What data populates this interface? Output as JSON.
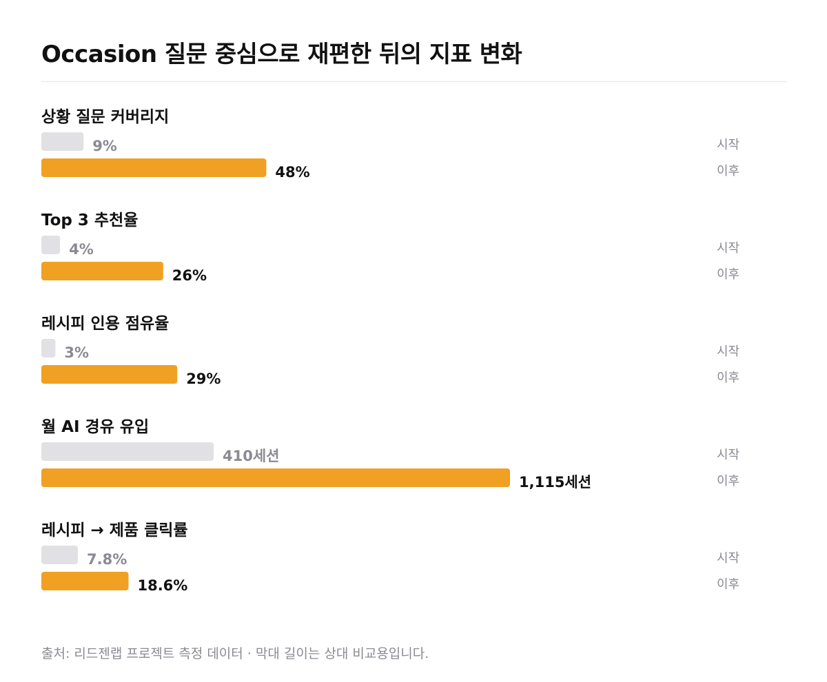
{
  "chart_data": {
    "type": "bar",
    "title": "Occasion 질문 중심으로 재편한 뒤의 지표 변화",
    "series": [
      {
        "name": "시작",
        "color": "#e1e1e5"
      },
      {
        "name": "이후",
        "color": "#f0a023"
      }
    ],
    "metrics": [
      {
        "label": "상황 질문 커버리지",
        "before": 9,
        "after": 48,
        "before_label": "9%",
        "after_label": "48%"
      },
      {
        "label": "Top 3 추천율",
        "before": 4,
        "after": 26,
        "before_label": "4%",
        "after_label": "26%"
      },
      {
        "label": "레시피 인용 점유율",
        "before": 3,
        "after": 29,
        "before_label": "3%",
        "after_label": "29%"
      },
      {
        "label": "월 AI 경유 유입",
        "before": 410,
        "after": 1115,
        "before_label": "410세션",
        "after_label": "1,115세션",
        "max": 1115
      },
      {
        "label": "레시피 → 제품 클릭률",
        "before": 7.8,
        "after": 18.6,
        "before_label": "7.8%",
        "after_label": "18.6%"
      }
    ],
    "row_labels": {
      "before": "시작",
      "after": "이후"
    }
  },
  "footer": {
    "source": "출처: 리드젠랩 프로젝트 측정 데이터 · 막대 길이는 상대 비교용입니다."
  }
}
